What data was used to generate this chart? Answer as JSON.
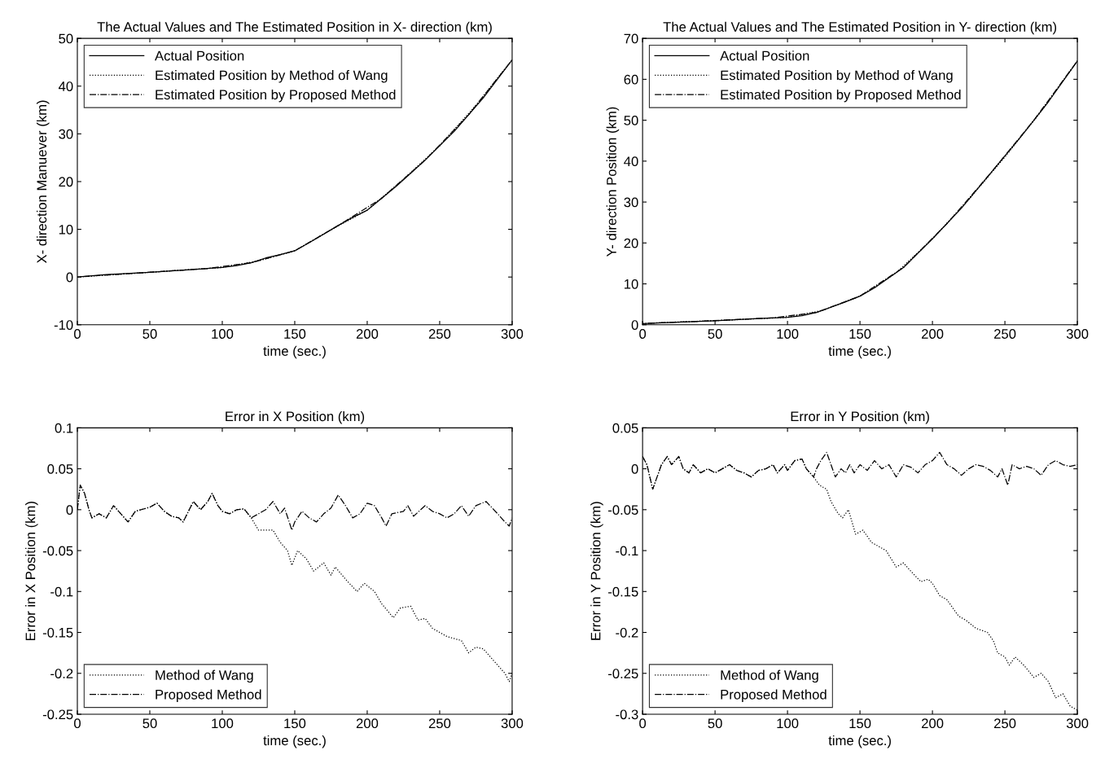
{
  "chart_data": [
    {
      "type": "line",
      "title": "The Actual Values and The Estimated Position in X- direction (km)",
      "xlabel": "time (sec.)",
      "ylabel": "X- direction Manuever (km)",
      "xlim": [
        0,
        300
      ],
      "xticks": [
        0,
        50,
        100,
        150,
        200,
        250,
        300
      ],
      "ylim": [
        -10,
        50
      ],
      "yticks": [
        -10,
        0,
        10,
        20,
        30,
        40,
        50
      ],
      "grid": false,
      "legend": "top left",
      "series": [
        {
          "name": "Actual Position",
          "color": "#000000",
          "line_style": "solid",
          "x": [
            0,
            20,
            50,
            80,
            100,
            110,
            120,
            130,
            140,
            150,
            160,
            170,
            180,
            190,
            200,
            220,
            240,
            260,
            280,
            300
          ],
          "values": [
            0,
            0.5,
            1,
            1.6,
            2,
            2.4,
            3,
            4,
            4.7,
            5.5,
            7.2,
            9,
            10.8,
            12.5,
            14,
            19,
            24.5,
            30.5,
            37.5,
            45.5
          ]
        },
        {
          "name": "Estimated Position by Method of Wang",
          "color": "#000000",
          "line_style": "dotted",
          "x": [
            0,
            25,
            50,
            75,
            100,
            125,
            150,
            175,
            200,
            225,
            250,
            275,
            296
          ],
          "values": [
            0,
            0.5,
            1,
            1.5,
            2,
            3.4,
            5.5,
            9.9,
            14,
            20.5,
            27.5,
            36,
            44
          ]
        },
        {
          "name": "Estimated Position by Proposed Method",
          "color": "#000000",
          "line_style": "dashdot",
          "x": [
            4,
            30,
            60,
            90,
            120,
            150,
            180,
            210,
            240,
            270,
            300
          ],
          "values": [
            0.1,
            0.6,
            1.2,
            1.8,
            3,
            5.5,
            10.8,
            16.5,
            24.5,
            34,
            45.5
          ]
        }
      ]
    },
    {
      "type": "line",
      "title": "The Actual Values and The Estimated Position in Y- direction (km)",
      "xlabel": "time (sec.)",
      "ylabel": "Y- direction Position (km)",
      "xlim": [
        0,
        300
      ],
      "xticks": [
        0,
        50,
        100,
        150,
        200,
        250,
        300
      ],
      "ylim": [
        0,
        70
      ],
      "yticks": [
        0,
        10,
        20,
        30,
        40,
        50,
        60,
        70
      ],
      "grid": false,
      "legend": "top left",
      "series": [
        {
          "name": "Actual Position",
          "color": "#000000",
          "line_style": "solid",
          "x": [
            0,
            20,
            50,
            80,
            100,
            110,
            120,
            130,
            140,
            150,
            160,
            170,
            180,
            190,
            200,
            220,
            240,
            260,
            280,
            300
          ],
          "values": [
            0.3,
            0.6,
            1,
            1.5,
            1.8,
            2.2,
            3,
            4.3,
            5.6,
            7,
            9,
            11.5,
            14,
            17.5,
            21,
            28.5,
            37,
            45.5,
            54.5,
            64.5
          ]
        },
        {
          "name": "Estimated Position by Method of Wang",
          "color": "#000000",
          "line_style": "dotted",
          "x": [
            0,
            25,
            50,
            75,
            100,
            125,
            150,
            175,
            200,
            225,
            250,
            275,
            296
          ],
          "values": [
            0.3,
            0.7,
            1,
            1.4,
            1.8,
            3.6,
            7,
            12.7,
            21,
            30.6,
            41,
            52.2,
            62.5
          ]
        },
        {
          "name": "Estimated Position by Proposed Method",
          "color": "#000000",
          "line_style": "dashdot",
          "x": [
            4,
            30,
            60,
            90,
            120,
            150,
            180,
            210,
            240,
            270,
            300
          ],
          "values": [
            0.4,
            0.7,
            1.2,
            1.7,
            3,
            7,
            14,
            24.7,
            37,
            50,
            64.5
          ]
        }
      ]
    },
    {
      "type": "line",
      "title": "Error in X Position (km)",
      "xlabel": "time (sec.)",
      "ylabel": "Error in X Position (km)",
      "xlim": [
        0,
        300
      ],
      "xticks": [
        0,
        50,
        100,
        150,
        200,
        250,
        300
      ],
      "ylim": [
        -0.25,
        0.1
      ],
      "yticks": [
        -0.25,
        -0.2,
        -0.15,
        -0.1,
        -0.05,
        0,
        0.05,
        0.1
      ],
      "grid": false,
      "legend": "bottom left",
      "series": [
        {
          "name": "Method of Wang",
          "color": "#000000",
          "line_style": "dotted",
          "x": [
            0,
            2,
            5,
            8,
            10,
            15,
            20,
            25,
            30,
            35,
            40,
            50,
            55,
            60,
            65,
            70,
            73,
            80,
            85,
            90,
            93,
            97,
            100,
            105,
            110,
            115,
            120,
            125,
            130,
            135,
            140,
            145,
            148,
            152,
            158,
            163,
            170,
            175,
            178,
            185,
            193,
            198,
            205,
            210,
            218,
            223,
            230,
            235,
            240,
            245,
            255,
            265,
            270,
            275,
            280,
            290,
            295,
            298,
            300
          ],
          "values": [
            0,
            0.03,
            0.02,
            0,
            -0.01,
            -0.005,
            -0.01,
            0.005,
            -0.005,
            -0.015,
            -0.002,
            0.003,
            0.008,
            -0.002,
            -0.008,
            -0.01,
            -0.015,
            0.01,
            0,
            0.01,
            0.02,
            0.005,
            -0.002,
            -0.005,
            0,
            0.001,
            -0.01,
            -0.025,
            -0.025,
            -0.025,
            -0.04,
            -0.05,
            -0.068,
            -0.05,
            -0.06,
            -0.075,
            -0.065,
            -0.08,
            -0.07,
            -0.085,
            -0.1,
            -0.09,
            -0.1,
            -0.115,
            -0.132,
            -0.12,
            -0.118,
            -0.135,
            -0.133,
            -0.145,
            -0.155,
            -0.16,
            -0.175,
            -0.168,
            -0.17,
            -0.19,
            -0.2,
            -0.21,
            -0.2
          ]
        },
        {
          "name": "Proposed Method",
          "color": "#000000",
          "line_style": "dashdot",
          "x": [
            0,
            2,
            5,
            8,
            10,
            15,
            20,
            25,
            30,
            35,
            40,
            50,
            55,
            60,
            65,
            70,
            73,
            80,
            85,
            90,
            93,
            97,
            100,
            105,
            110,
            115,
            120,
            125,
            130,
            135,
            140,
            143,
            148,
            150,
            155,
            160,
            165,
            170,
            175,
            180,
            185,
            190,
            195,
            200,
            205,
            210,
            213,
            217,
            225,
            228,
            232,
            240,
            245,
            250,
            255,
            260,
            265,
            270,
            275,
            282,
            290,
            295,
            298,
            300
          ],
          "values": [
            0,
            0.03,
            0.02,
            0,
            -0.01,
            -0.005,
            -0.01,
            0.005,
            -0.005,
            -0.015,
            -0.002,
            0.003,
            0.008,
            -0.002,
            -0.008,
            -0.01,
            -0.015,
            0.01,
            0,
            0.01,
            0.02,
            0.005,
            -0.002,
            -0.005,
            0,
            0.001,
            -0.01,
            -0.005,
            0,
            0.01,
            -0.005,
            0.002,
            -0.025,
            -0.015,
            -0.002,
            -0.01,
            -0.015,
            -0.005,
            0.002,
            0.018,
            0.005,
            -0.01,
            -0.005,
            0.008,
            0.005,
            -0.01,
            -0.02,
            -0.005,
            -0.002,
            0.005,
            -0.008,
            0.005,
            -0.002,
            -0.005,
            -0.01,
            -0.005,
            0.005,
            -0.008,
            0.005,
            0.01,
            -0.005,
            -0.015,
            -0.02,
            -0.01
          ]
        }
      ]
    },
    {
      "type": "line",
      "title": "Error in Y Position (km)",
      "xlabel": "time (sec.)",
      "ylabel": "Error in Y Position (km)",
      "xlim": [
        0,
        300
      ],
      "xticks": [
        0,
        50,
        100,
        150,
        200,
        250,
        300
      ],
      "ylim": [
        -0.3,
        0.05
      ],
      "yticks": [
        -0.3,
        -0.25,
        -0.2,
        -0.15,
        -0.1,
        -0.05,
        0,
        0.05
      ],
      "grid": false,
      "legend": "bottom left",
      "series": [
        {
          "name": "Method of Wang",
          "color": "#000000",
          "line_style": "dotted",
          "x": [
            0,
            3,
            7,
            10,
            13,
            17,
            20,
            25,
            28,
            32,
            35,
            40,
            45,
            50,
            55,
            60,
            65,
            70,
            75,
            80,
            85,
            90,
            93,
            98,
            100,
            105,
            110,
            113,
            118,
            122,
            127,
            130,
            135,
            138,
            142,
            147,
            152,
            158,
            163,
            168,
            175,
            180,
            185,
            192,
            197,
            200,
            205,
            210,
            218,
            223,
            230,
            238,
            242,
            245,
            250,
            253,
            257,
            263,
            270,
            275,
            280,
            285,
            290,
            295,
            300
          ],
          "values": [
            0.015,
            0.005,
            -0.025,
            -0.01,
            0.005,
            0.015,
            0.005,
            0.015,
            0,
            -0.005,
            0.005,
            -0.005,
            0,
            -0.005,
            0,
            0.005,
            -0.002,
            -0.005,
            -0.01,
            -0.002,
            0,
            0.005,
            -0.005,
            0.005,
            -0.002,
            0.01,
            0.012,
            0,
            -0.01,
            -0.02,
            -0.025,
            -0.04,
            -0.055,
            -0.06,
            -0.05,
            -0.08,
            -0.075,
            -0.09,
            -0.095,
            -0.1,
            -0.12,
            -0.115,
            -0.125,
            -0.138,
            -0.135,
            -0.14,
            -0.155,
            -0.16,
            -0.18,
            -0.185,
            -0.195,
            -0.2,
            -0.21,
            -0.225,
            -0.23,
            -0.24,
            -0.23,
            -0.24,
            -0.255,
            -0.25,
            -0.26,
            -0.28,
            -0.275,
            -0.29,
            -0.295
          ]
        },
        {
          "name": "Proposed Method",
          "color": "#000000",
          "line_style": "dashdot",
          "x": [
            0,
            3,
            7,
            10,
            13,
            17,
            20,
            25,
            28,
            32,
            35,
            40,
            45,
            50,
            55,
            60,
            65,
            70,
            75,
            80,
            85,
            90,
            93,
            98,
            100,
            105,
            110,
            113,
            118,
            120,
            123,
            127,
            130,
            133,
            137,
            140,
            143,
            146,
            150,
            155,
            160,
            165,
            170,
            175,
            180,
            185,
            190,
            195,
            200,
            205,
            210,
            215,
            220,
            225,
            230,
            235,
            240,
            245,
            248,
            252,
            255,
            260,
            265,
            270,
            275,
            280,
            285,
            290,
            295,
            300
          ],
          "values": [
            0.015,
            0.005,
            -0.025,
            -0.01,
            0.005,
            0.015,
            0.005,
            0.015,
            0,
            -0.005,
            0.005,
            -0.005,
            0,
            -0.005,
            0,
            0.005,
            -0.002,
            -0.005,
            -0.01,
            -0.002,
            0,
            0.005,
            -0.005,
            0.005,
            -0.002,
            0.01,
            0.012,
            0,
            -0.01,
            0,
            0.01,
            0.02,
            0.005,
            -0.01,
            0,
            -0.005,
            0.005,
            -0.005,
            0.005,
            -0.002,
            0.01,
            0,
            0.005,
            -0.01,
            0.005,
            0.002,
            -0.005,
            0.005,
            0.01,
            0.02,
            0.005,
            0,
            -0.008,
            0,
            0.005,
            0.003,
            -0.002,
            -0.01,
            0,
            -0.02,
            0.005,
            0,
            0.003,
            0,
            -0.008,
            0.005,
            0.01,
            0.005,
            0.003,
            0.005
          ]
        }
      ]
    }
  ]
}
